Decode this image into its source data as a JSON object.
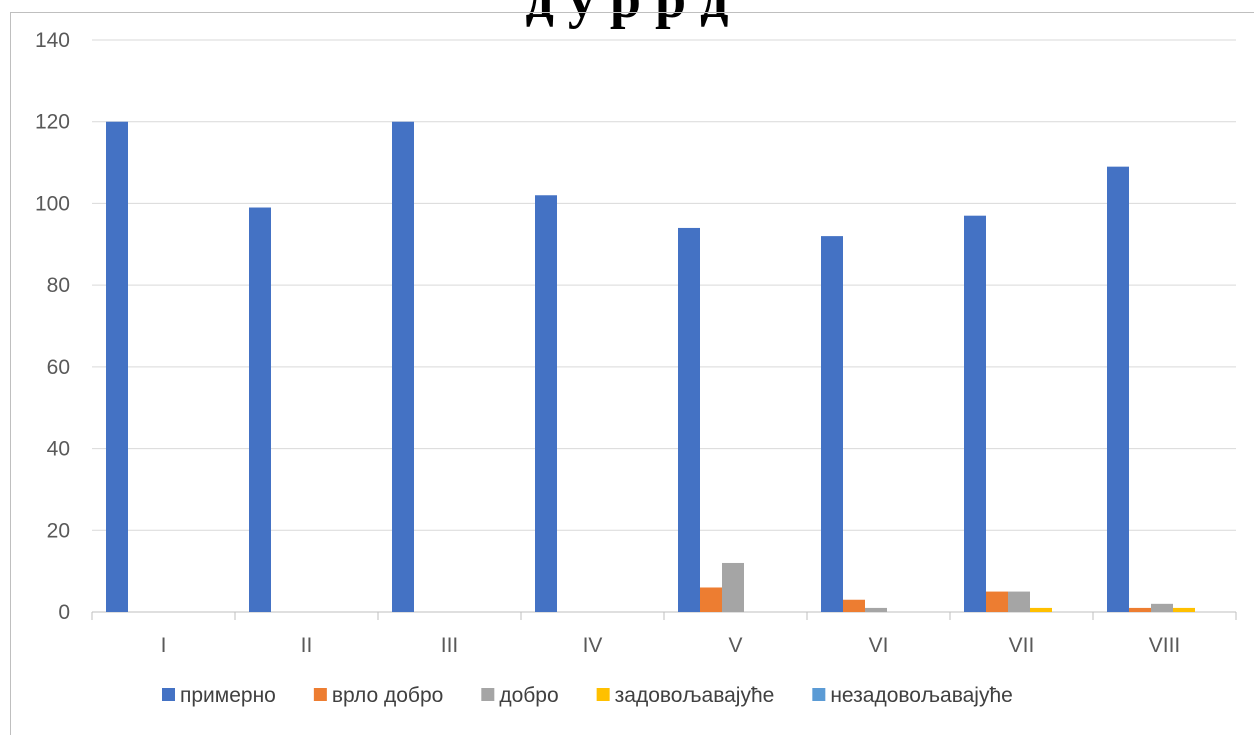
{
  "chart_data": {
    "type": "bar",
    "title_fragment": "д    у              р  р  д",
    "categories": [
      "I",
      "II",
      "III",
      "IV",
      "V",
      "VI",
      "VII",
      "VIII"
    ],
    "series": [
      {
        "name": "примерно",
        "color": "#4472C4",
        "values": [
          120,
          99,
          120,
          102,
          94,
          92,
          97,
          109
        ]
      },
      {
        "name": "врло добро",
        "color": "#ED7D31",
        "values": [
          0,
          0,
          0,
          0,
          6,
          3,
          5,
          1
        ]
      },
      {
        "name": "добро",
        "color": "#A5A5A5",
        "values": [
          0,
          0,
          0,
          0,
          12,
          1,
          5,
          2
        ]
      },
      {
        "name": "задовољавајуће",
        "color": "#FFC000",
        "values": [
          0,
          0,
          0,
          0,
          0,
          0,
          1,
          1
        ]
      },
      {
        "name": "незадовољавајуће",
        "color": "#5B9BD5",
        "values": [
          0,
          0,
          0,
          0,
          0,
          0,
          0,
          0
        ]
      }
    ],
    "ylim": [
      0,
      140
    ],
    "yticks": [
      0,
      20,
      40,
      60,
      80,
      100,
      120,
      140
    ],
    "grid": true,
    "legend": "bottom"
  }
}
